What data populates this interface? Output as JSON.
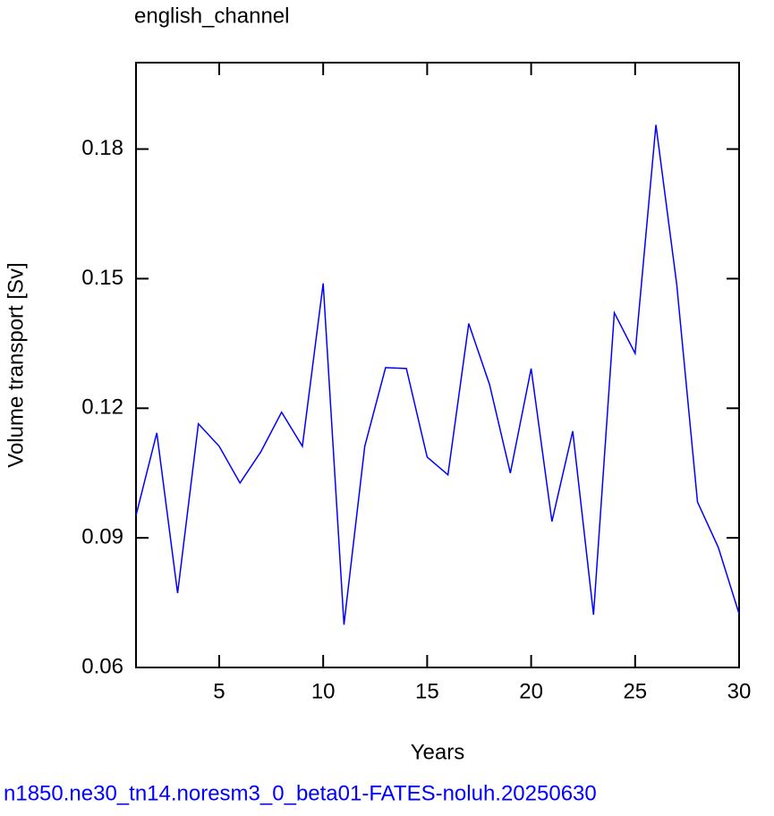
{
  "chart_data": {
    "type": "line",
    "title": "english_channel",
    "x_label": "Years",
    "y_label": "Volume transport [Sv]",
    "footer": "n1850.ne30_tn14.noresm3_0_beta01-FATES-noluh.20250630",
    "x": [
      1,
      2,
      3,
      4,
      5,
      6,
      7,
      8,
      9,
      10,
      11,
      12,
      13,
      14,
      15,
      16,
      17,
      18,
      19,
      20,
      21,
      22,
      23,
      24,
      25,
      26,
      27,
      28,
      29,
      30
    ],
    "series": [
      {
        "name": "english_channel",
        "color": "#0000ff",
        "values": [
          0.0952,
          0.1143,
          0.0772,
          0.1164,
          0.1112,
          0.1027,
          0.1099,
          0.1191,
          0.1112,
          0.1489,
          0.0699,
          0.1112,
          0.1294,
          0.1292,
          0.1087,
          0.1046,
          0.1396,
          0.1255,
          0.105,
          0.1292,
          0.0938,
          0.1147,
          0.0722,
          0.1421,
          0.1327,
          0.1856,
          0.1487,
          0.0983,
          0.0878,
          0.0724
        ]
      }
    ],
    "xlim": [
      1,
      30
    ],
    "xticks": [
      5,
      10,
      15,
      20,
      25,
      30
    ],
    "ylim": [
      0.06,
      0.2
    ],
    "yticks": [
      0.06,
      0.09,
      0.12,
      0.15,
      0.18
    ],
    "grid": false,
    "footer_color": "#0000ff"
  }
}
